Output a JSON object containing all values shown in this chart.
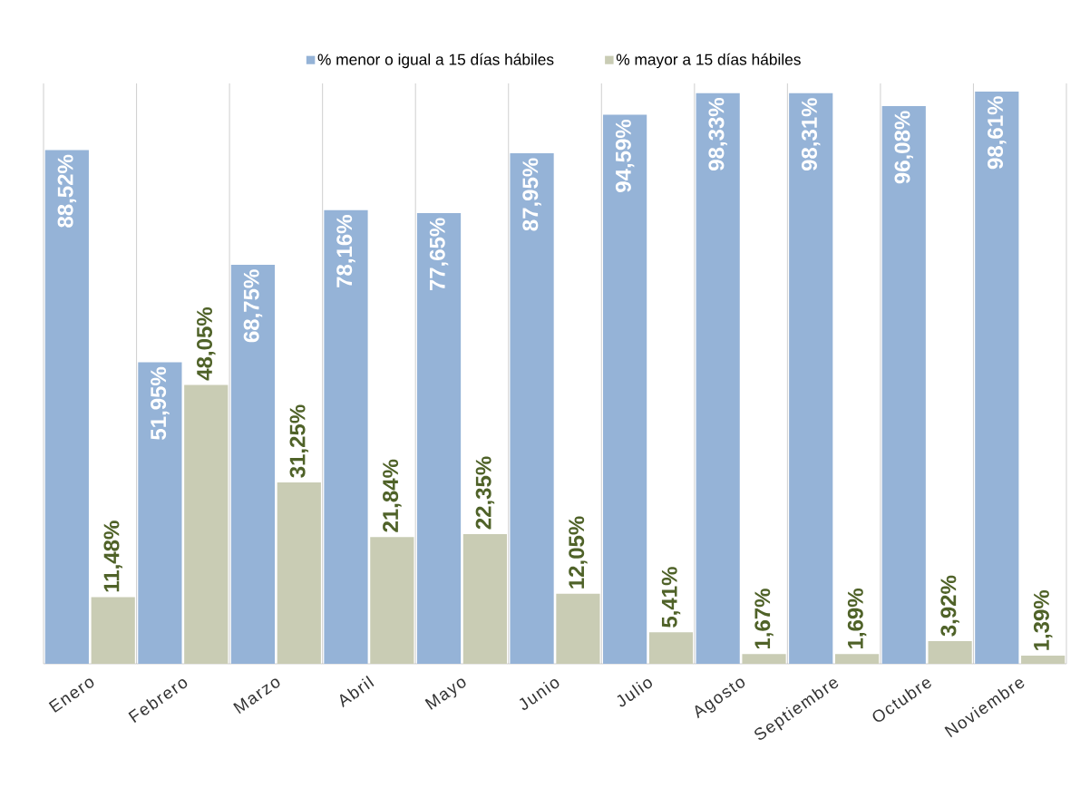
{
  "chart_data": {
    "type": "bar",
    "categories": [
      "Enero",
      "Febrero",
      "Marzo",
      "Abril",
      "Mayo",
      "Junio",
      "Julio",
      "Agosto",
      "Septiembre",
      "Octubre",
      "Noviembre"
    ],
    "series": [
      {
        "name": "% menor o igual a 15 días hábiles",
        "color": "#95b3d7",
        "values": [
          88.52,
          51.95,
          68.75,
          78.16,
          77.65,
          87.95,
          94.59,
          98.33,
          98.31,
          96.08,
          98.61
        ],
        "value_labels": [
          "88,52%",
          "51,95%",
          "68,75%",
          "78,16%",
          "77,65%",
          "87,95%",
          "94,59%",
          "98,33%",
          "98,31%",
          "96,08%",
          "98,61%"
        ]
      },
      {
        "name": "% mayor a 15 días hábiles",
        "color": "#c9ccb4",
        "values": [
          11.48,
          48.05,
          31.25,
          21.84,
          22.35,
          12.05,
          5.41,
          1.67,
          1.69,
          3.92,
          1.39
        ],
        "value_labels": [
          "11,48%",
          "48,05%",
          "31,25%",
          "21,84%",
          "22,35%",
          "12,05%",
          "5,41%",
          "1,67%",
          "1,69%",
          "3,92%",
          "1,39%"
        ]
      }
    ],
    "ylim": [
      0,
      100
    ],
    "grid": "x",
    "legend": "top",
    "tick_labels": "x"
  }
}
